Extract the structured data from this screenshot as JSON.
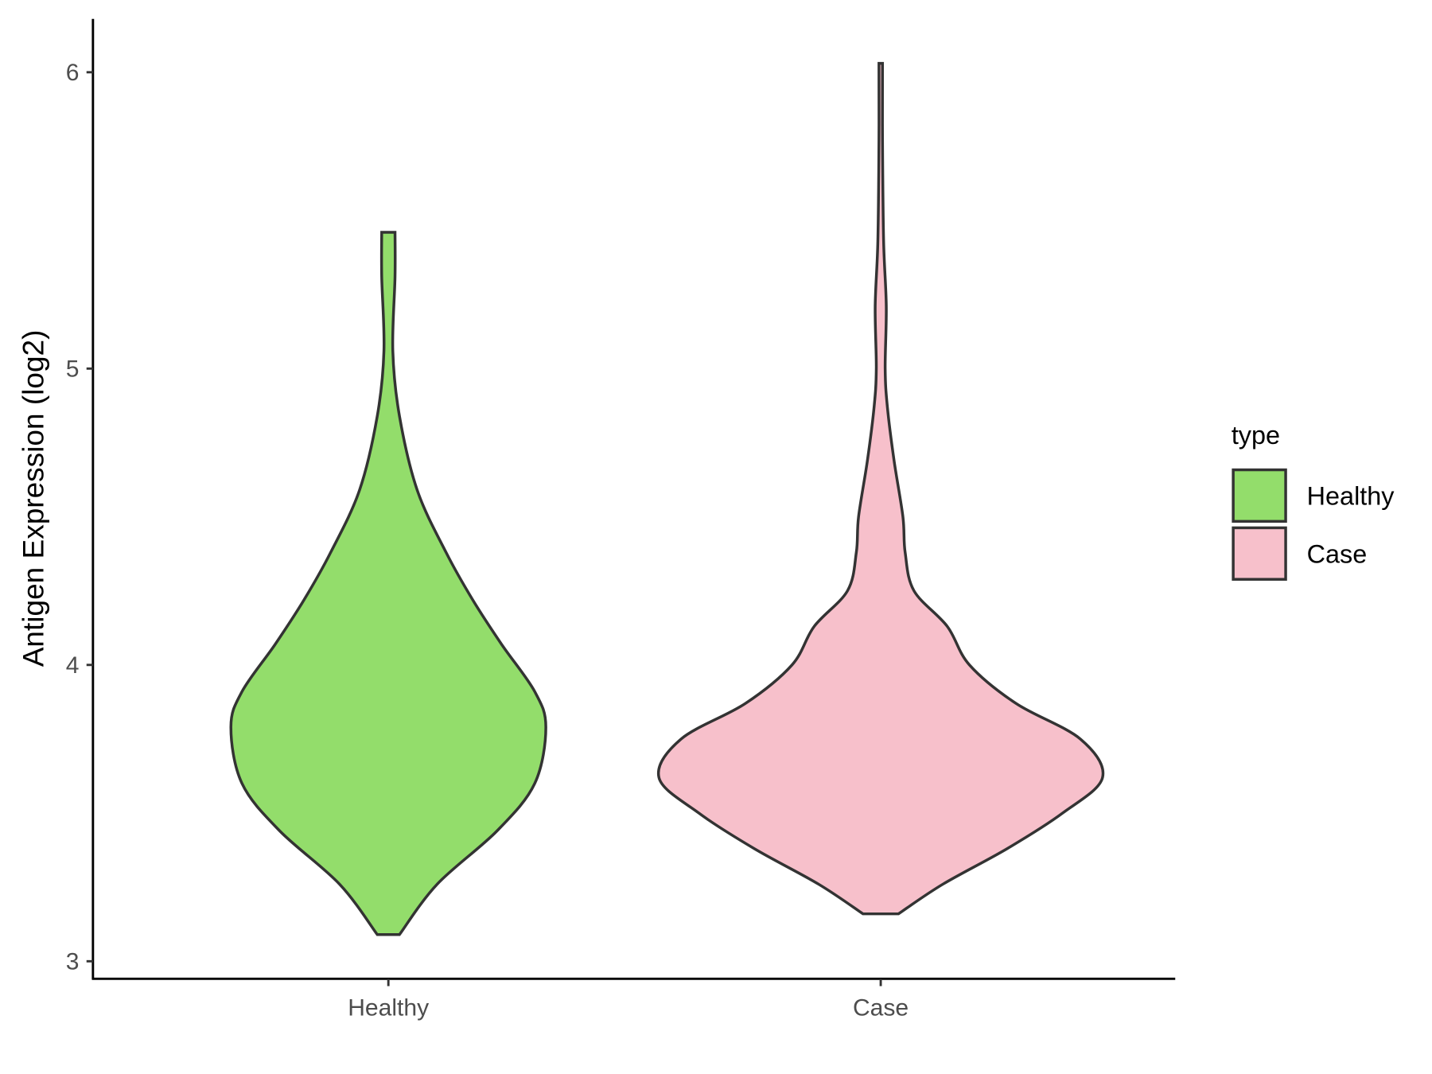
{
  "chart_data": {
    "type": "violin",
    "title": "",
    "xlabel": "",
    "ylabel": "Antigen Expression (log2)",
    "categories": [
      "Healthy",
      "Case"
    ],
    "yticks": [
      "3",
      "4",
      "5",
      "6"
    ],
    "ylim": [
      2.94,
      6.18
    ],
    "legend": {
      "title": "type",
      "position": "right",
      "entries": [
        "Healthy",
        "Case"
      ]
    },
    "series": [
      {
        "name": "Healthy",
        "color": "#93dd6b",
        "profile": [
          [
            3.09,
            0.05
          ],
          [
            3.26,
            0.22
          ],
          [
            3.44,
            0.49
          ],
          [
            3.6,
            0.66
          ],
          [
            3.79,
            0.71
          ],
          [
            3.91,
            0.66
          ],
          [
            4.07,
            0.51
          ],
          [
            4.22,
            0.38
          ],
          [
            4.38,
            0.26
          ],
          [
            4.59,
            0.13
          ],
          [
            4.84,
            0.05
          ],
          [
            5.06,
            0.02
          ],
          [
            5.31,
            0.03
          ],
          [
            5.46,
            0.03
          ]
        ]
      },
      {
        "name": "Case",
        "color": "#f7c0cb",
        "profile": [
          [
            3.16,
            0.08
          ],
          [
            3.26,
            0.28
          ],
          [
            3.38,
            0.57
          ],
          [
            3.5,
            0.82
          ],
          [
            3.62,
            1.0
          ],
          [
            3.75,
            0.9
          ],
          [
            3.87,
            0.61
          ],
          [
            4.0,
            0.4
          ],
          [
            4.13,
            0.3
          ],
          [
            4.25,
            0.15
          ],
          [
            4.38,
            0.11
          ],
          [
            4.5,
            0.1
          ],
          [
            4.69,
            0.06
          ],
          [
            4.87,
            0.03
          ],
          [
            5.0,
            0.02
          ],
          [
            5.21,
            0.025
          ],
          [
            5.43,
            0.013
          ],
          [
            5.77,
            0.008
          ],
          [
            6.03,
            0.008
          ]
        ]
      }
    ]
  }
}
